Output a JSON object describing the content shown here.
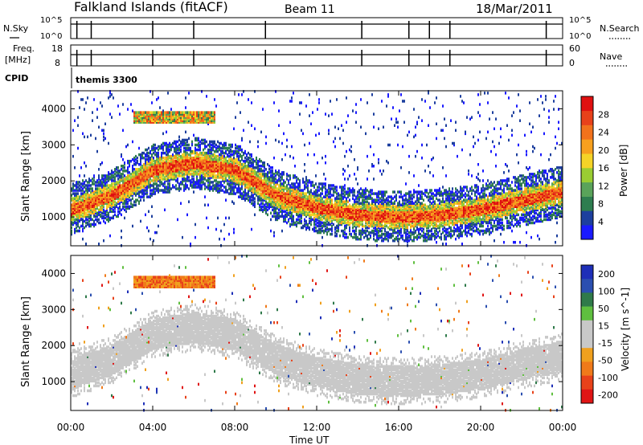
{
  "header": {
    "station": "Falkland Islands (fitACF)",
    "beam": "Beam 11",
    "date": "18/Mar/2011"
  },
  "params": {
    "nsky_label": "N.Sky",
    "nsky_ticks": [
      "10^5",
      "10^0"
    ],
    "nsearch_label": "N.Search",
    "freq_label": "Freq.",
    "freq_unit": "[MHz]",
    "freq_ticks": [
      "18",
      "8"
    ],
    "nave_label": "Nave",
    "nave_ticks": [
      "60",
      "0"
    ],
    "cpid_label": "CPID",
    "cpid_value": "themis 3300"
  },
  "x_axis": {
    "label": "Time UT",
    "ticks": [
      "00:00",
      "04:00",
      "08:00",
      "12:00",
      "16:00",
      "20:00",
      "00:00"
    ]
  },
  "colors": {
    "power_scale": [
      "#1a1aff",
      "#1d3f9e",
      "#2e7d4f",
      "#5aa35a",
      "#9acd32",
      "#f5d327",
      "#f7a01e",
      "#f2721c",
      "#e8411a",
      "#e01010"
    ],
    "velocity_scale": [
      "#1e2fb8",
      "#2b4fb0",
      "#2f7a4a",
      "#5fbf3f",
      "#c8c8c8",
      "#c8c8c8",
      "#f0a01e",
      "#f07a1a",
      "#e8421a",
      "#e01515"
    ],
    "ground_scatter": "#c8c8c8"
  },
  "chart_data": [
    {
      "type": "heatmap",
      "panel": "power",
      "ylabel": "Slant Range [km]",
      "y_ticks": [
        "1000",
        "2000",
        "3000",
        "4000"
      ],
      "ylim": [
        200,
        4500
      ],
      "xlim_hours": [
        0,
        24
      ],
      "colorbar_label": "Power [dB]",
      "colorbar_ticks": [
        "4",
        "8",
        "12",
        "16",
        "20",
        "24",
        "28"
      ],
      "main_band": {
        "x": [
          0,
          2,
          4,
          6,
          8,
          10,
          12,
          14,
          16,
          18,
          20,
          22,
          24
        ],
        "y": [
          1200,
          1600,
          2300,
          2500,
          2300,
          1600,
          1250,
          1050,
          1000,
          1050,
          1200,
          1450,
          1700
        ]
      },
      "high_patch": {
        "x_hours": [
          3.0,
          7.0
        ],
        "range_km": [
          3600,
          3900
        ]
      }
    },
    {
      "type": "heatmap",
      "panel": "velocity",
      "ylabel": "Slant Range [km]",
      "y_ticks": [
        "1000",
        "2000",
        "3000",
        "4000"
      ],
      "ylim": [
        200,
        4500
      ],
      "xlim_hours": [
        0,
        24
      ],
      "colorbar_label": "Velocity [m s^-1]",
      "colorbar_ticks": [
        "200",
        "100",
        "50",
        "15",
        "-15",
        "-50",
        "-100",
        "-200"
      ]
    }
  ]
}
